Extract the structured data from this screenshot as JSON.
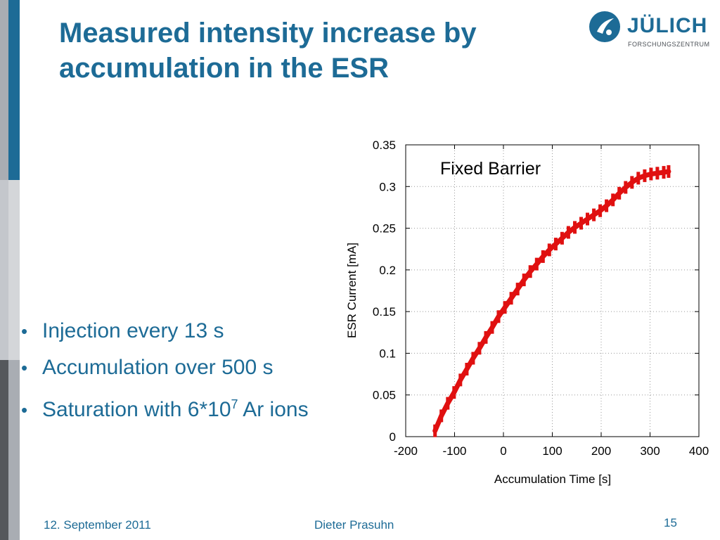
{
  "slide": {
    "title_line1": "Measured intensity increase by",
    "title_line2": "accumulation in the ESR",
    "logo": {
      "name": "JÜLICH",
      "subtitle": "FORSCHUNGSZENTRUM"
    },
    "bullets": [
      {
        "text": "Injection every 13 s"
      },
      {
        "text": "Accumulation over 500 s"
      },
      {
        "text_before": "Saturation with 6*10",
        "superscript": "7",
        "text_after": " Ar ions"
      }
    ],
    "bullet_char": "•",
    "footer": {
      "date": "12.  September 2011",
      "author": "Dieter Prasuhn",
      "page": "15"
    }
  },
  "colors": {
    "accent": "#1d6b96",
    "series": "#e01010"
  },
  "chart_data": {
    "type": "line",
    "annotation": "Fixed Barrier",
    "xlabel": "Accumulation Time [s]",
    "ylabel": "ESR Current [mA]",
    "xlim": [
      -200,
      400
    ],
    "ylim": [
      0,
      0.35
    ],
    "xticks": [
      "-200",
      "-100",
      "0",
      "100",
      "200",
      "300",
      "400"
    ],
    "yticks": [
      "0",
      "0.05",
      "0.1",
      "0.15",
      "0.2",
      "0.25",
      "0.3",
      "0.35"
    ],
    "grid": true,
    "series": [
      {
        "x": [
          -140,
          -127,
          -114,
          -101,
          -88,
          -75,
          -62,
          -49,
          -36,
          -23,
          -10,
          3,
          16,
          29,
          42,
          55,
          68,
          81,
          94,
          107,
          120,
          133,
          146,
          159,
          172,
          185,
          198,
          211,
          224,
          237,
          250,
          263,
          276,
          289,
          302,
          315,
          328,
          338
        ],
        "y": [
          0.007,
          0.025,
          0.04,
          0.053,
          0.068,
          0.081,
          0.094,
          0.106,
          0.119,
          0.131,
          0.144,
          0.155,
          0.166,
          0.177,
          0.188,
          0.198,
          0.207,
          0.216,
          0.224,
          0.231,
          0.238,
          0.245,
          0.251,
          0.256,
          0.261,
          0.266,
          0.271,
          0.277,
          0.284,
          0.292,
          0.299,
          0.305,
          0.31,
          0.313,
          0.315,
          0.316,
          0.317,
          0.318
        ]
      }
    ]
  }
}
